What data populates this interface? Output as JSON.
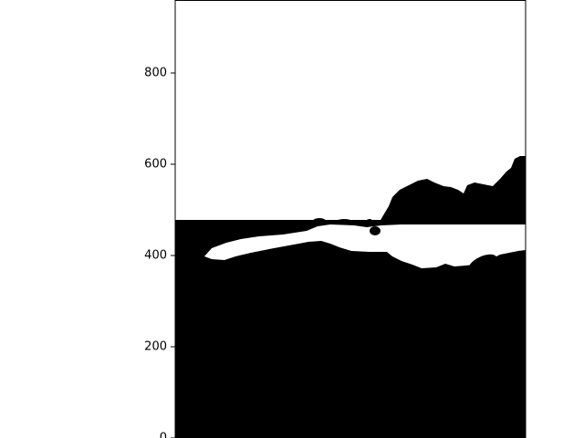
{
  "chart_data": {
    "type": "heatmap",
    "title": "",
    "xlabel": "",
    "ylabel": "",
    "ylim": [
      0,
      960
    ],
    "y_ticks": [
      {
        "value": 0,
        "label": "0"
      },
      {
        "value": 200,
        "label": "200"
      },
      {
        "value": 400,
        "label": "400"
      },
      {
        "value": 600,
        "label": "600"
      },
      {
        "value": 800,
        "label": "800"
      }
    ],
    "colormap": [
      "#000000",
      "#ffffff"
    ],
    "grid": false,
    "legend": "none"
  }
}
